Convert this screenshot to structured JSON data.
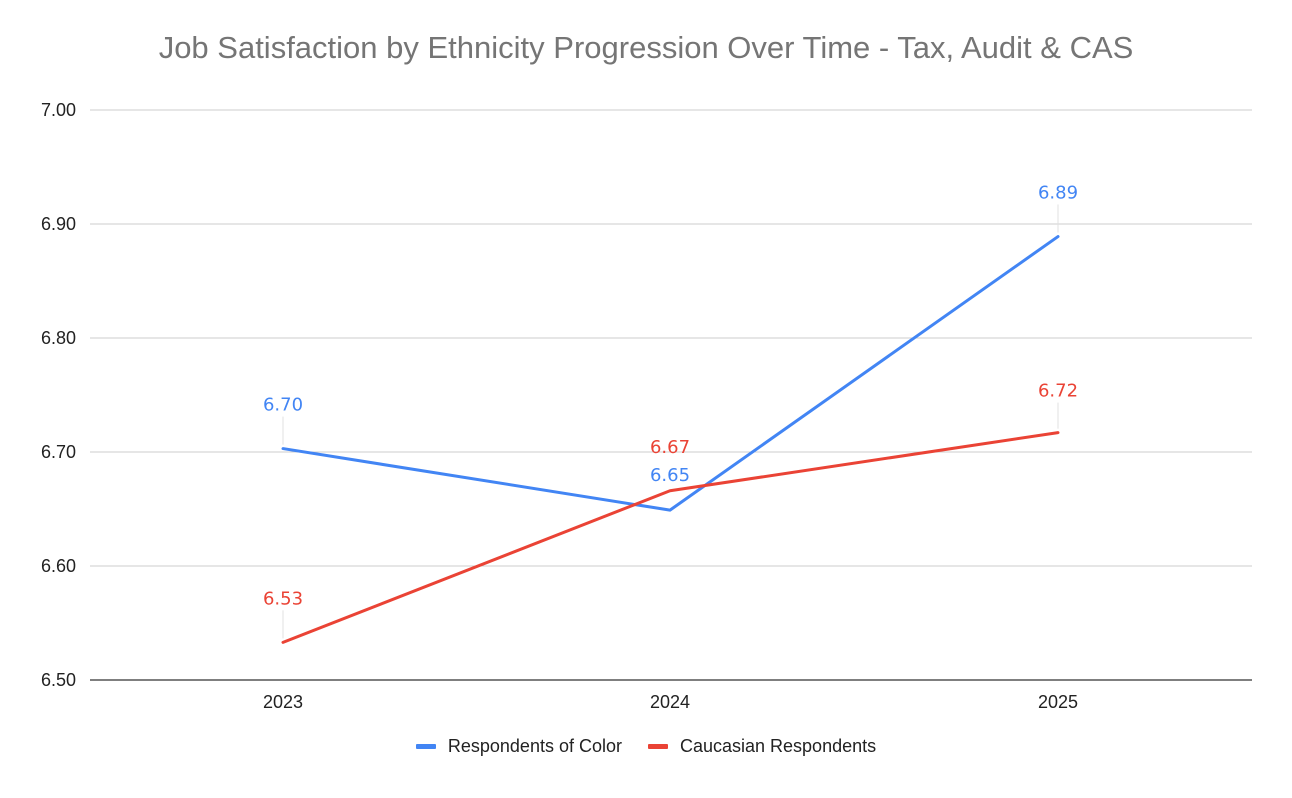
{
  "chart_data": {
    "type": "line",
    "title": "Job Satisfaction by Ethnicity Progression Over Time - Tax, Audit & CAS",
    "xlabel": "",
    "ylabel": "",
    "categories": [
      "2023",
      "2024",
      "2025"
    ],
    "ylim": [
      6.5,
      7.0
    ],
    "yticks": [
      "6.50",
      "6.60",
      "6.70",
      "6.80",
      "6.90",
      "7.00"
    ],
    "grid": true,
    "legend_position": "bottom",
    "series": [
      {
        "name": "Respondents of Color",
        "color": "#4285F4",
        "values": [
          6.703,
          6.649,
          6.889
        ],
        "labels": [
          "6.70",
          "6.65",
          "6.89"
        ]
      },
      {
        "name": "Caucasian Respondents",
        "color": "#EA4335",
        "values": [
          6.533,
          6.666,
          6.717
        ],
        "labels": [
          "6.53",
          "6.67",
          "6.72"
        ]
      }
    ]
  }
}
